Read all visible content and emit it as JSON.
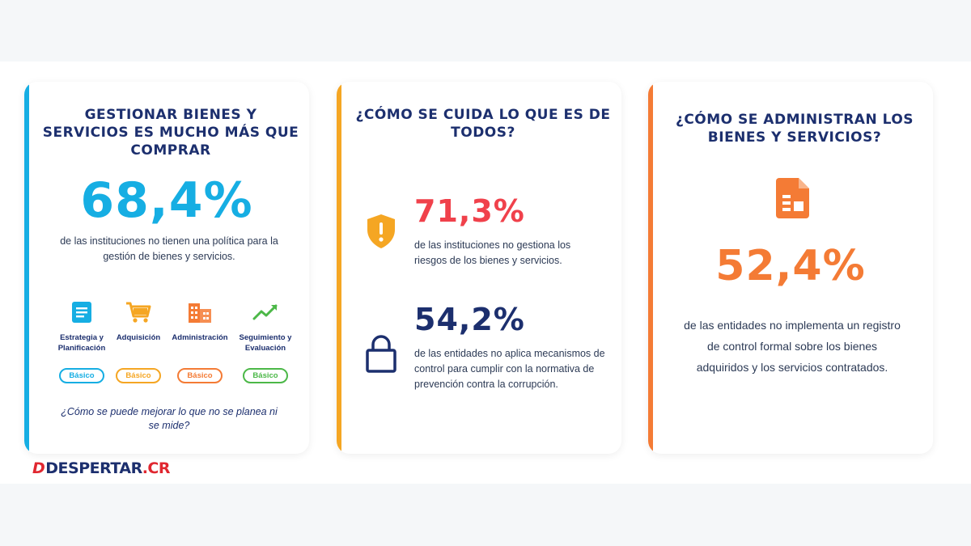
{
  "cards": [
    {
      "title": "GESTIONAR BIENES Y SERVICIOS ES MUCHO MÁS QUE COMPRAR",
      "stat": "68,4%",
      "description": "de las instituciones no tienen una política para la gestión de bienes y servicios.",
      "stages": [
        {
          "label": "Estrategia y Planificación",
          "level": "Básico",
          "icon": "document-list-icon",
          "color": "#16aee3"
        },
        {
          "label": "Adquisición",
          "level": "Básico",
          "icon": "shopping-cart-icon",
          "color": "#f5a623"
        },
        {
          "label": "Administración",
          "level": "Básico",
          "icon": "building-icon",
          "color": "#f47b35"
        },
        {
          "label": "Seguimiento y Evaluación",
          "level": "Básico",
          "icon": "trend-line-icon",
          "color": "#4cb848"
        }
      ],
      "question": "¿Cómo se puede mejorar lo que no se planea ni se mide?",
      "accent": "#16aee3"
    },
    {
      "title": "¿CÓMO SE CUIDA LO QUE ES DE TODOS?",
      "stats": [
        {
          "value": "71,3%",
          "description": "de las instituciones no gestiona los riesgos de los bienes y servicios.",
          "icon": "shield-warning-icon",
          "color": "#f0414b"
        },
        {
          "value": "54,2%",
          "description": "de las entidades no aplica mecanismos de control para cumplir con la normativa de prevención contra la corrupción.",
          "icon": "lock-icon",
          "color": "#1c2f6e"
        }
      ],
      "accent": "#f5a623"
    },
    {
      "title": "¿CÓMO SE ADMINISTRAN LOS BIENES Y SERVICIOS?",
      "icon": "document-icon",
      "stat": "52,4%",
      "description": "de las entidades no implementa un registro de control formal sobre los bienes adquiridos y los servicios contratados.",
      "accent": "#f47b35"
    }
  ],
  "logo": {
    "name": "DESPERTAR",
    "tld": ".CR"
  }
}
